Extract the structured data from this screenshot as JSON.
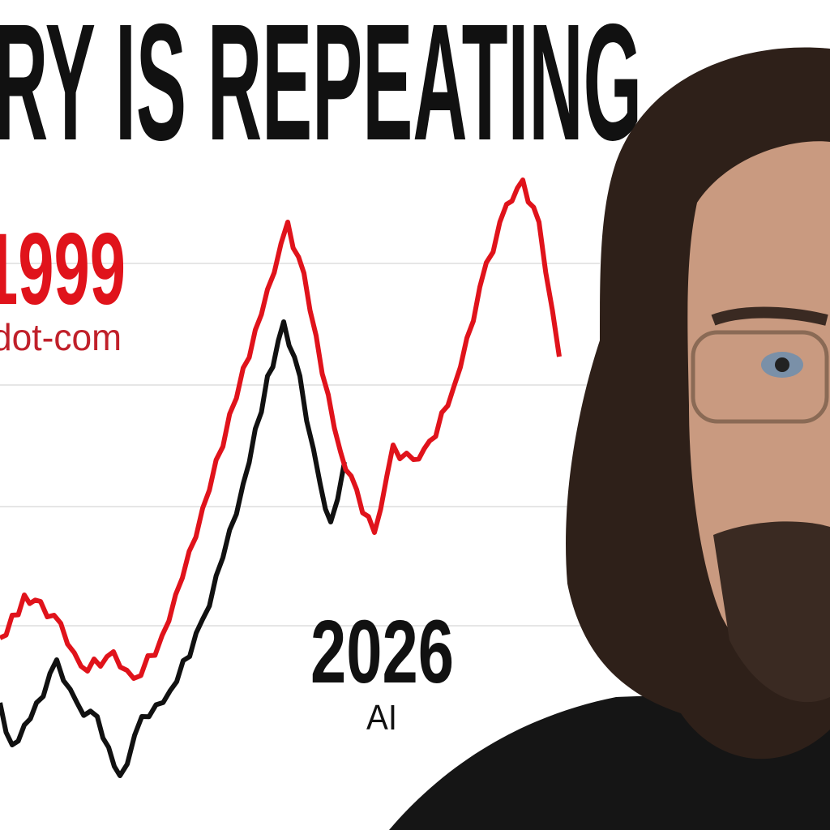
{
  "title": "RY IS REPEATING",
  "annotations": {
    "left_year": "1999",
    "left_caption": "dot-com",
    "right_year": "2026",
    "right_caption": "AI"
  },
  "colors": {
    "highlight_line": "#e0131b",
    "base_line": "#111111",
    "gridline": "#e6e6e6"
  },
  "image": {
    "subject": "person-portrait"
  }
}
